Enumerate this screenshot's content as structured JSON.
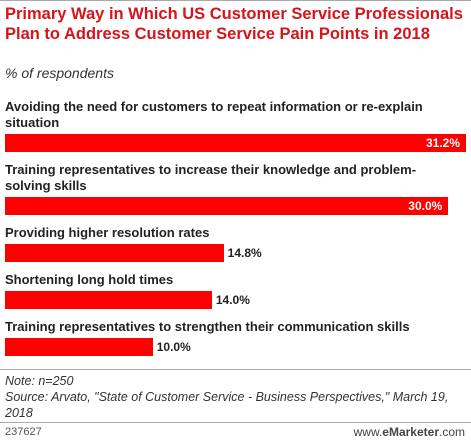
{
  "chart_data": {
    "type": "bar",
    "orientation": "horizontal",
    "title": "Primary Way in Which US Customer Service Professionals Plan to Address Customer Service Pain Points in 2018",
    "subtitle": "% of respondents",
    "categories": [
      "Avoiding the need for customers to repeat information or re-explain situation",
      "Training representatives to increase their knowledge and problem-solving skills",
      "Providing higher resolution rates",
      "Shortening long hold times",
      "Training representatives to strengthen their communication skills"
    ],
    "values": [
      31.2,
      30.0,
      14.8,
      14.0,
      10.0
    ],
    "value_labels": [
      "31.2%",
      "30.0%",
      "14.8%",
      "14.0%",
      "10.0%"
    ],
    "color": "#ff0000",
    "note": "Note: n=250",
    "source": "Source: Arvato, \"State of Customer Service - Business Perspectives,\" March 19, 2018",
    "chart_id": "237627",
    "logo": [
      "www.",
      "eMarketer",
      ".com"
    ]
  }
}
